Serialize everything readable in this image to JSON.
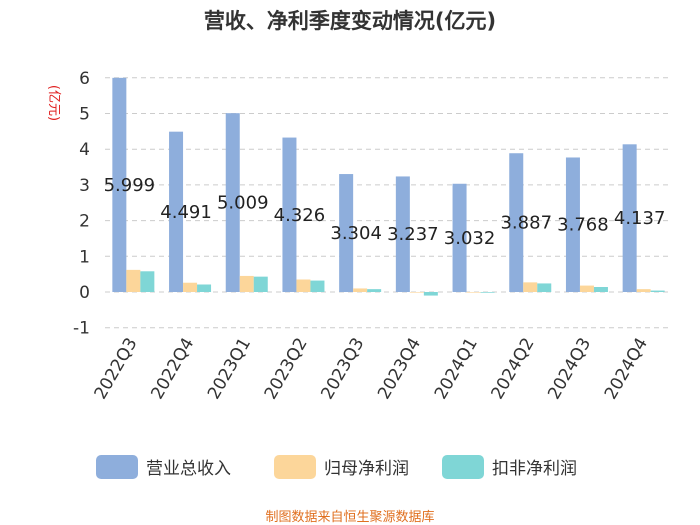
{
  "chart_data": {
    "type": "bar",
    "title": "营收、净利季度变动情况(亿元)",
    "ylabel": "(亿元)",
    "ylim": [
      -1,
      6
    ],
    "yticks": [
      -1,
      0,
      1,
      2,
      3,
      4,
      5,
      6
    ],
    "grid": "horizontal dashed",
    "legend_position": "bottom",
    "categories": [
      "2022Q3",
      "2022Q4",
      "2023Q1",
      "2023Q2",
      "2023Q3",
      "2023Q4",
      "2024Q1",
      "2024Q2",
      "2024Q3",
      "2024Q4"
    ],
    "series": [
      {
        "name": "营业总收入",
        "color": "#8eaedc",
        "values": [
          5.999,
          4.491,
          5.009,
          4.326,
          3.304,
          3.237,
          3.032,
          3.887,
          3.768,
          4.137
        ],
        "labels": [
          "5.999",
          "4.491",
          "5.009",
          "4.326",
          "3.304",
          "3.237",
          "3.032",
          "3.887",
          "3.768",
          "4.137"
        ]
      },
      {
        "name": "归母净利润",
        "color": "#fcd69a",
        "values": [
          0.62,
          0.26,
          0.45,
          0.35,
          0.1,
          0.0,
          0.0,
          0.27,
          0.18,
          0.08
        ]
      },
      {
        "name": "扣非净利润",
        "color": "#7fd6d6",
        "values": [
          0.58,
          0.21,
          0.43,
          0.32,
          0.08,
          -0.1,
          -0.02,
          0.24,
          0.14,
          0.04
        ]
      }
    ]
  },
  "footer": {
    "source": "制图数据来自恒生聚源数据库"
  }
}
